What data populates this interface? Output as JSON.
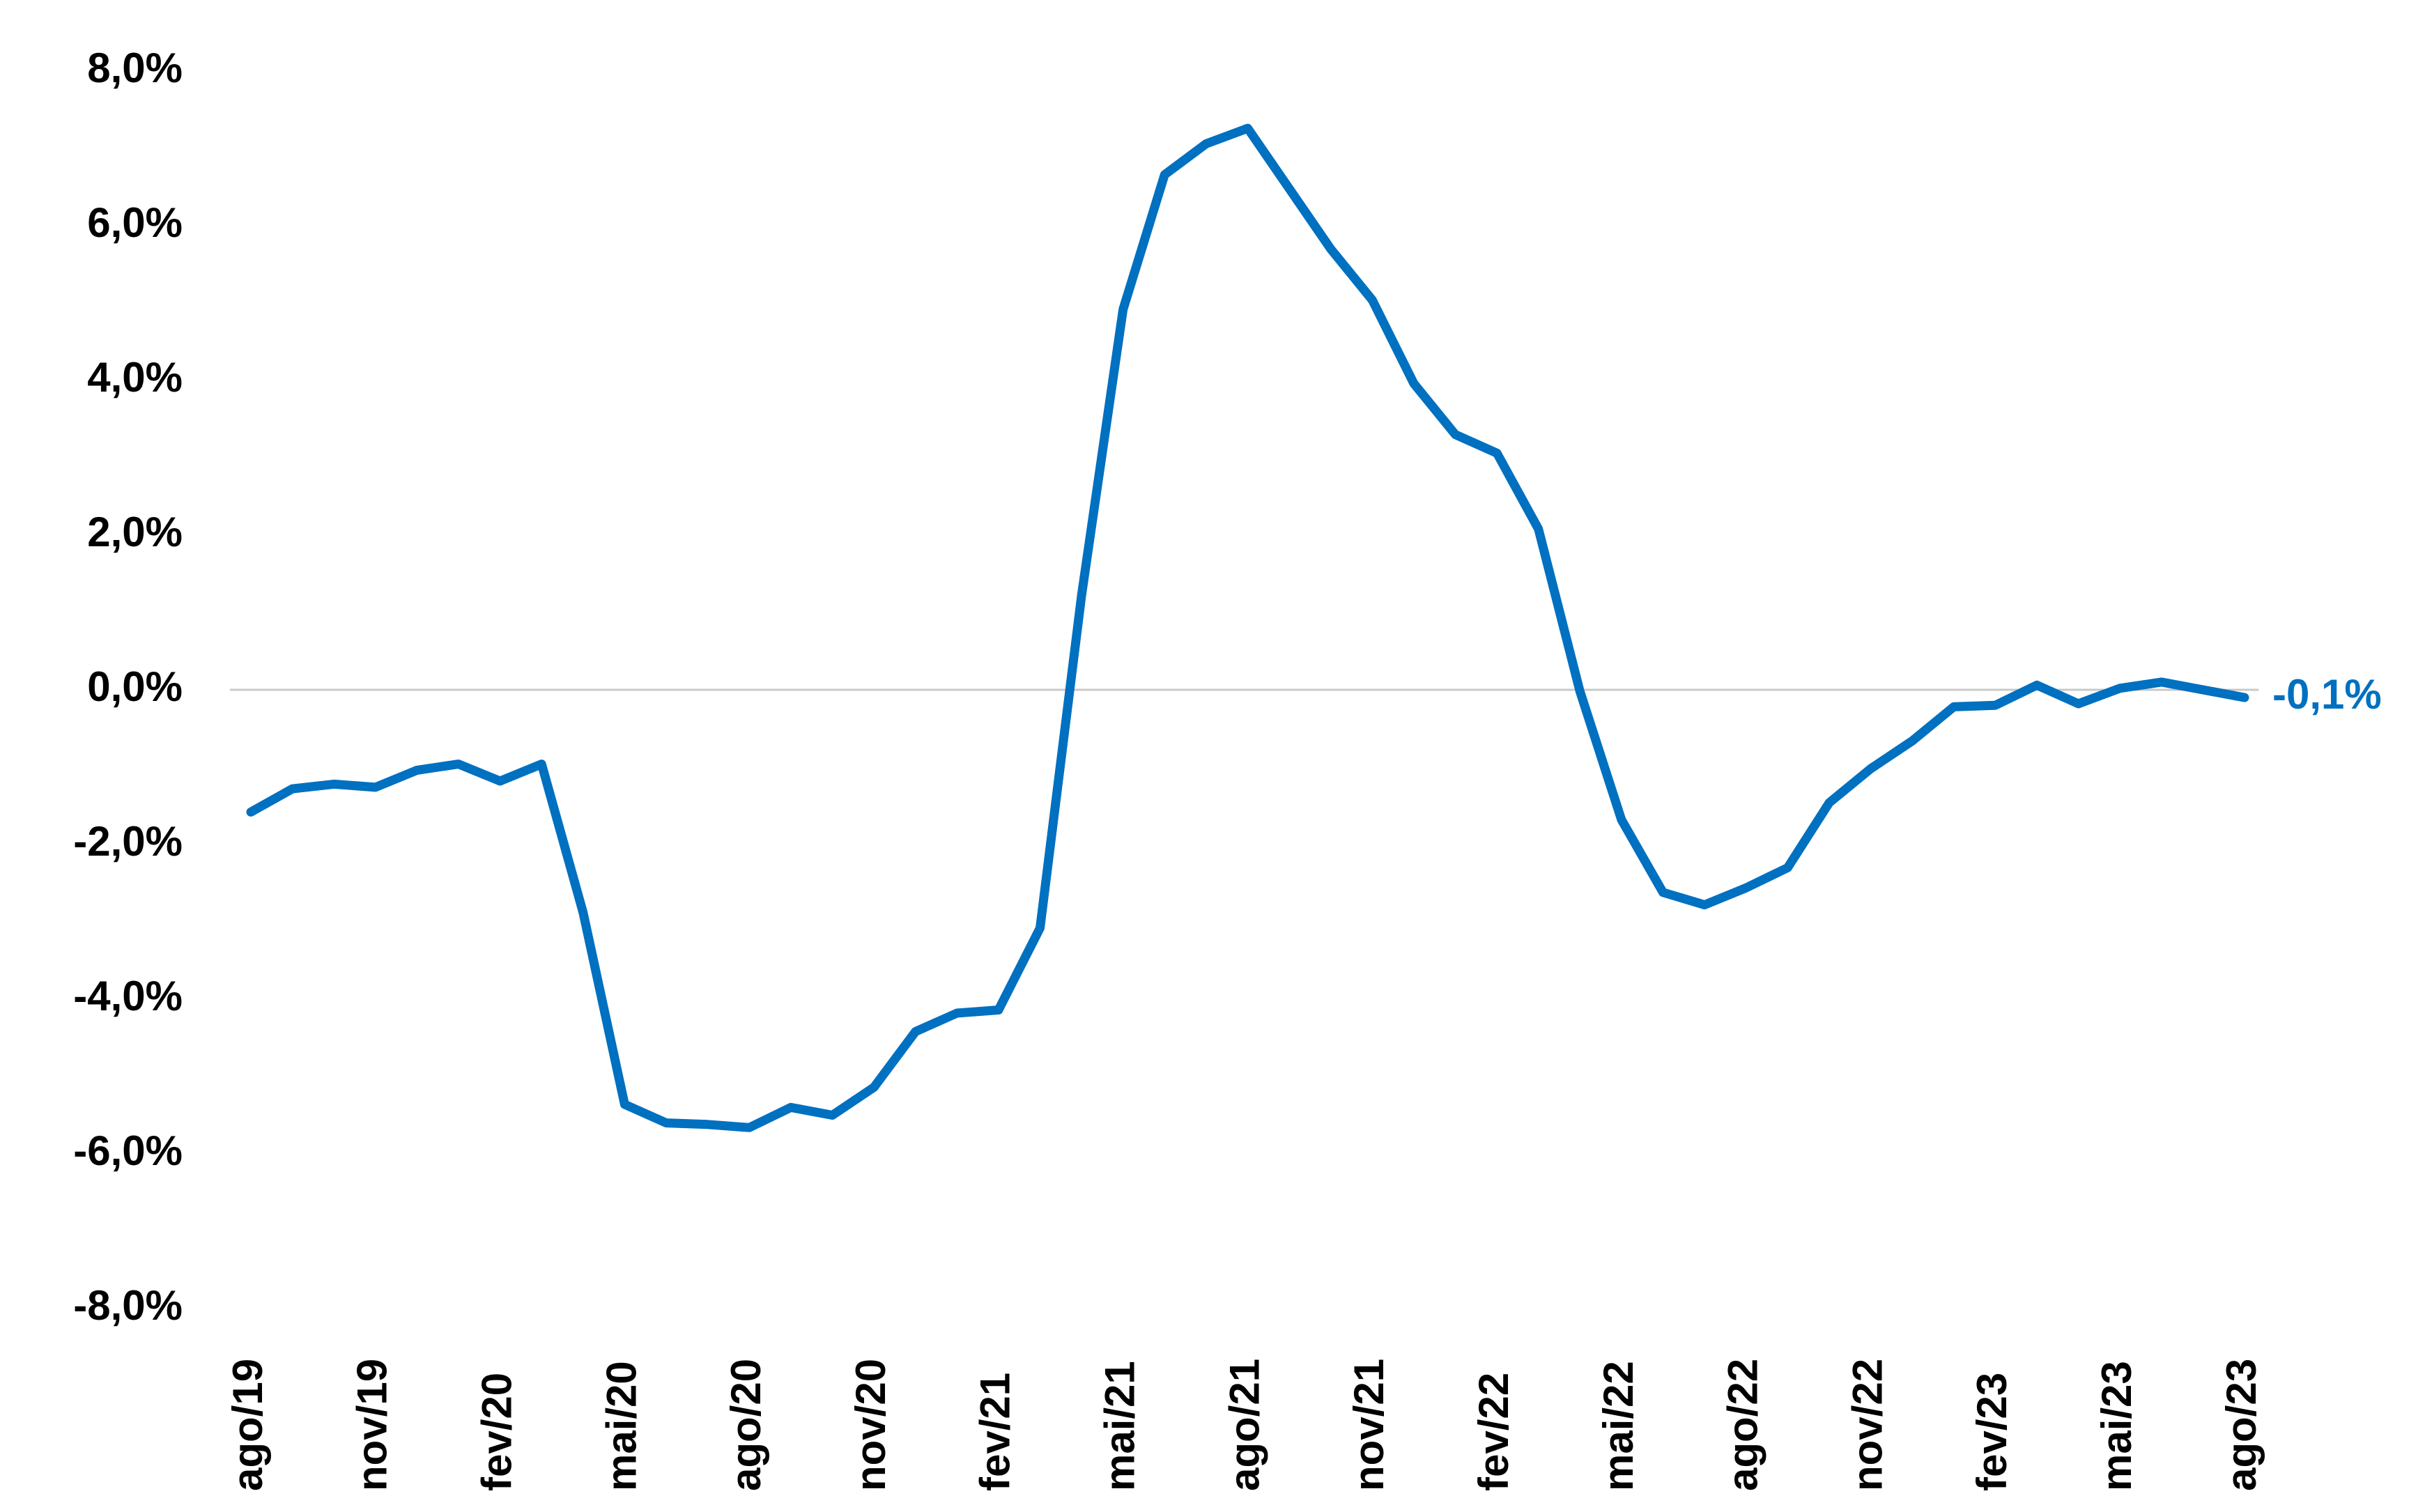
{
  "chart_data": {
    "type": "line",
    "categories": [
      "ago/19",
      null,
      null,
      "nov/19",
      null,
      null,
      "fev/20",
      null,
      null,
      "mai/20",
      null,
      null,
      "ago/20",
      null,
      null,
      "nov/20",
      null,
      null,
      "fev/21",
      null,
      null,
      "mai/21",
      null,
      null,
      "ago/21",
      null,
      null,
      "nov/21",
      null,
      null,
      "fev/22",
      null,
      null,
      "mai/22",
      null,
      null,
      "ago/22",
      null,
      null,
      "nov/22",
      null,
      null,
      "fev/23",
      null,
      null,
      "mai/23",
      null,
      null,
      "ago/23"
    ],
    "values": [
      -1.58,
      -1.28,
      -1.22,
      -1.26,
      -1.04,
      -0.96,
      -1.18,
      -0.96,
      -2.88,
      -5.36,
      -5.6,
      -5.62,
      -5.66,
      -5.4,
      -5.5,
      -5.14,
      -4.42,
      -4.18,
      -4.14,
      -3.08,
      1.22,
      4.92,
      6.66,
      7.06,
      7.26,
      6.48,
      5.7,
      5.04,
      3.96,
      3.3,
      3.06,
      2.08,
      -0.02,
      -1.68,
      -2.62,
      -2.78,
      -2.56,
      -2.3,
      -1.46,
      -1.02,
      -0.66,
      -0.22,
      -0.2,
      0.06,
      -0.18,
      0.02,
      0.1,
      0,
      -0.1
    ],
    "value_labels": [
      null,
      null,
      null,
      null,
      null,
      null,
      null,
      null,
      null,
      null,
      null,
      null,
      null,
      null,
      null,
      null,
      null,
      null,
      null,
      null,
      null,
      null,
      null,
      null,
      null,
      null,
      null,
      null,
      null,
      null,
      null,
      null,
      null,
      null,
      null,
      null,
      null,
      null,
      null,
      null,
      null,
      null,
      null,
      null,
      null,
      null,
      null,
      null,
      "-0,1%"
    ],
    "color": "#0070c0",
    "ylim": [
      -8,
      8
    ],
    "yticks": [
      {
        "value": -8,
        "label": "-8,0%"
      },
      {
        "value": -6,
        "label": "-6,0%"
      },
      {
        "value": -4,
        "label": "-4,0%"
      },
      {
        "value": -2,
        "label": "-2,0%"
      },
      {
        "value": 0,
        "label": "0,0%"
      },
      {
        "value": 2,
        "label": "2,0%"
      },
      {
        "value": 4,
        "label": "4,0%"
      },
      {
        "value": 6,
        "label": "6,0%"
      },
      {
        "value": 8,
        "label": "8,0%"
      }
    ],
    "zero_line": true
  }
}
